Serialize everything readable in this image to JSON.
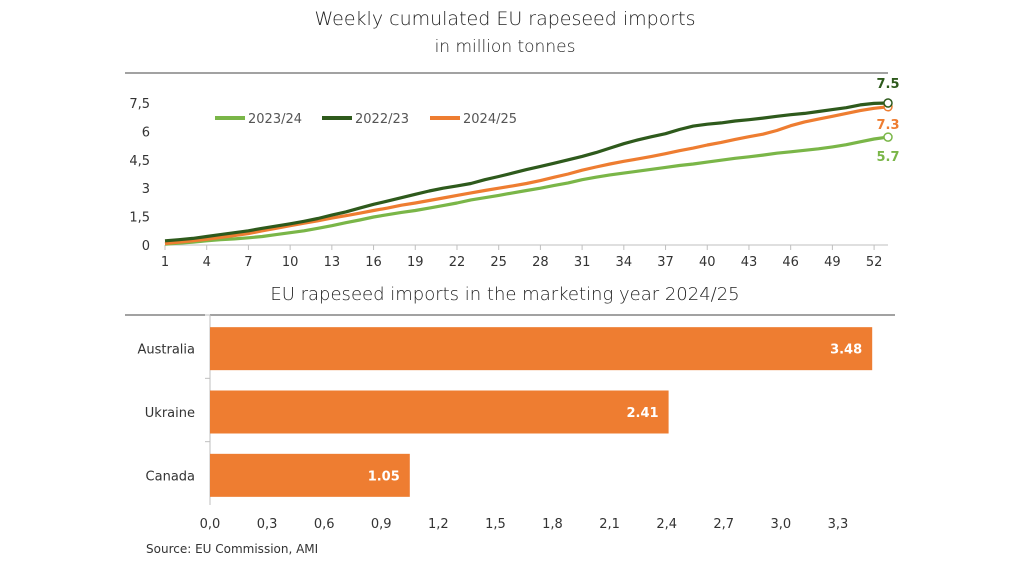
{
  "line_title": "Weekly cumulated EU rapeseed imports",
  "line_subtitle": "in million tonnes",
  "bar_title": "EU rapeseed imports in the marketing year 2024/25",
  "source": "Source: EU Commission, AMI",
  "colors": {
    "s2324": "#7ab648",
    "s2223": "#2e5a1c",
    "s2425": "#ee7d31",
    "bar": "#ee7d31"
  },
  "chart_data": [
    {
      "type": "line",
      "title": "Weekly cumulated EU rapeseed imports",
      "subtitle": "in million tonnes",
      "legend_position": "top-left",
      "x_ticks": [
        "1",
        "4",
        "7",
        "10",
        "13",
        "16",
        "19",
        "22",
        "25",
        "28",
        "31",
        "34",
        "37",
        "40",
        "43",
        "46",
        "49",
        "52"
      ],
      "y_ticks": [
        "0",
        "1,5",
        "3",
        "4,5",
        "6",
        "7,5"
      ],
      "xlim": [
        1,
        53
      ],
      "ylim": [
        0,
        7.5
      ],
      "x": [
        1,
        2,
        3,
        4,
        5,
        6,
        7,
        8,
        9,
        10,
        11,
        12,
        13,
        14,
        15,
        16,
        17,
        18,
        19,
        20,
        21,
        22,
        23,
        24,
        25,
        26,
        27,
        28,
        29,
        30,
        31,
        32,
        33,
        34,
        35,
        36,
        37,
        38,
        39,
        40,
        41,
        42,
        43,
        44,
        45,
        46,
        47,
        48,
        49,
        50,
        51,
        52,
        53
      ],
      "series": [
        {
          "name": "2023/24",
          "color_key": "s2324",
          "end_label": "5.7",
          "values": [
            0.05,
            0.1,
            0.15,
            0.22,
            0.28,
            0.32,
            0.38,
            0.45,
            0.55,
            0.65,
            0.75,
            0.88,
            1.02,
            1.18,
            1.32,
            1.48,
            1.6,
            1.72,
            1.82,
            1.95,
            2.08,
            2.22,
            2.38,
            2.5,
            2.62,
            2.75,
            2.88,
            3.0,
            3.15,
            3.28,
            3.45,
            3.58,
            3.7,
            3.8,
            3.9,
            4.0,
            4.1,
            4.2,
            4.28,
            4.38,
            4.48,
            4.58,
            4.66,
            4.75,
            4.85,
            4.92,
            5.0,
            5.08,
            5.18,
            5.3,
            5.45,
            5.6,
            5.7
          ]
        },
        {
          "name": "2022/23",
          "color_key": "s2223",
          "end_label": "7.5",
          "values": [
            0.22,
            0.28,
            0.35,
            0.45,
            0.55,
            0.65,
            0.75,
            0.88,
            1.0,
            1.12,
            1.25,
            1.4,
            1.58,
            1.75,
            1.95,
            2.15,
            2.32,
            2.5,
            2.68,
            2.85,
            3.0,
            3.12,
            3.25,
            3.45,
            3.62,
            3.8,
            3.98,
            4.15,
            4.32,
            4.5,
            4.68,
            4.88,
            5.12,
            5.35,
            5.55,
            5.72,
            5.88,
            6.1,
            6.28,
            6.38,
            6.45,
            6.55,
            6.62,
            6.7,
            6.8,
            6.88,
            6.95,
            7.05,
            7.15,
            7.25,
            7.4,
            7.48,
            7.5
          ]
        },
        {
          "name": "2024/25",
          "color_key": "s2425",
          "end_label": "7.3",
          "values": [
            0.08,
            0.15,
            0.22,
            0.3,
            0.4,
            0.5,
            0.6,
            0.75,
            0.88,
            1.02,
            1.15,
            1.28,
            1.42,
            1.55,
            1.68,
            1.82,
            1.95,
            2.1,
            2.22,
            2.35,
            2.48,
            2.62,
            2.75,
            2.88,
            3.0,
            3.12,
            3.25,
            3.4,
            3.58,
            3.75,
            3.95,
            4.12,
            4.28,
            4.42,
            4.55,
            4.68,
            4.82,
            4.98,
            5.12,
            5.28,
            5.42,
            5.58,
            5.72,
            5.85,
            6.05,
            6.3,
            6.5,
            6.65,
            6.8,
            6.95,
            7.1,
            7.22,
            7.3
          ]
        }
      ]
    },
    {
      "type": "bar",
      "orientation": "horizontal",
      "title": "EU rapeseed imports in the marketing year 2024/25",
      "categories": [
        "Australia",
        "Ukraine",
        "Canada"
      ],
      "values": [
        3.48,
        2.41,
        1.05
      ],
      "value_labels": [
        "3.48",
        "2.41",
        "1.05"
      ],
      "x_ticks": [
        "0,0",
        "0,3",
        "0,6",
        "0,9",
        "1,2",
        "1,5",
        "1,8",
        "2,1",
        "2,4",
        "2,7",
        "3,0",
        "3,3"
      ],
      "xlim": [
        0,
        3.6
      ]
    }
  ]
}
